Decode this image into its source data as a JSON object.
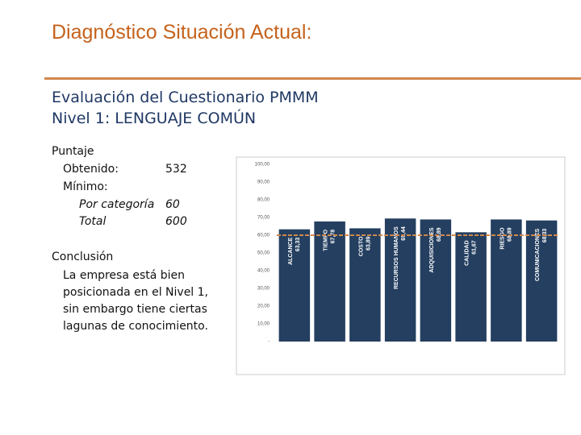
{
  "header": {
    "title": "Diagnóstico Situación Actual:"
  },
  "subtitle": [
    "Evaluación del Cuestionario PMMM",
    "Nivel 1: LENGUAJE COMÚN"
  ],
  "score": {
    "heading": "Puntaje",
    "obtained": {
      "label": "Obtenido:",
      "value": 532
    },
    "minimum": {
      "label": "Mínimo:",
      "per_category": {
        "label": "Por categoría",
        "value": 60
      },
      "total": {
        "label": "Total",
        "value": 600
      }
    }
  },
  "conclusion": {
    "heading": "Conclusión",
    "text": "La empresa está bien posicionada en el Nivel 1, sin embargo tiene ciertas lagunas de conocimiento."
  },
  "chart_data": {
    "type": "bar",
    "categories": [
      "ALCANCE",
      "TIEMPO",
      "COSTO",
      "RECURSOS HUMANOS",
      "ADQUISICIONES",
      "CALIDAD",
      "RIESGO",
      "COMUNICACIONES"
    ],
    "values": [
      63.33,
      67.78,
      63.89,
      69.44,
      68.89,
      61.67,
      68.89,
      68.33
    ],
    "value_labels": [
      "63,33",
      "67,78",
      "63,89",
      "69,44",
      "68,89",
      "61,67",
      "68,89",
      "68,33"
    ],
    "color": "#243f60",
    "ylim": [
      0,
      100
    ],
    "yticks": [
      {
        "value": 0,
        "label": "-"
      },
      {
        "value": 10,
        "label": "10,00"
      },
      {
        "value": 20,
        "label": "20,00"
      },
      {
        "value": 30,
        "label": "30,00"
      },
      {
        "value": 40,
        "label": "40,00"
      },
      {
        "value": 50,
        "label": "50,00"
      },
      {
        "value": 60,
        "label": "60,00"
      },
      {
        "value": 70,
        "label": "70,00"
      },
      {
        "value": 80,
        "label": "80,00"
      },
      {
        "value": 90,
        "label": "90,00"
      },
      {
        "value": 100,
        "label": "100,00"
      }
    ]
  }
}
